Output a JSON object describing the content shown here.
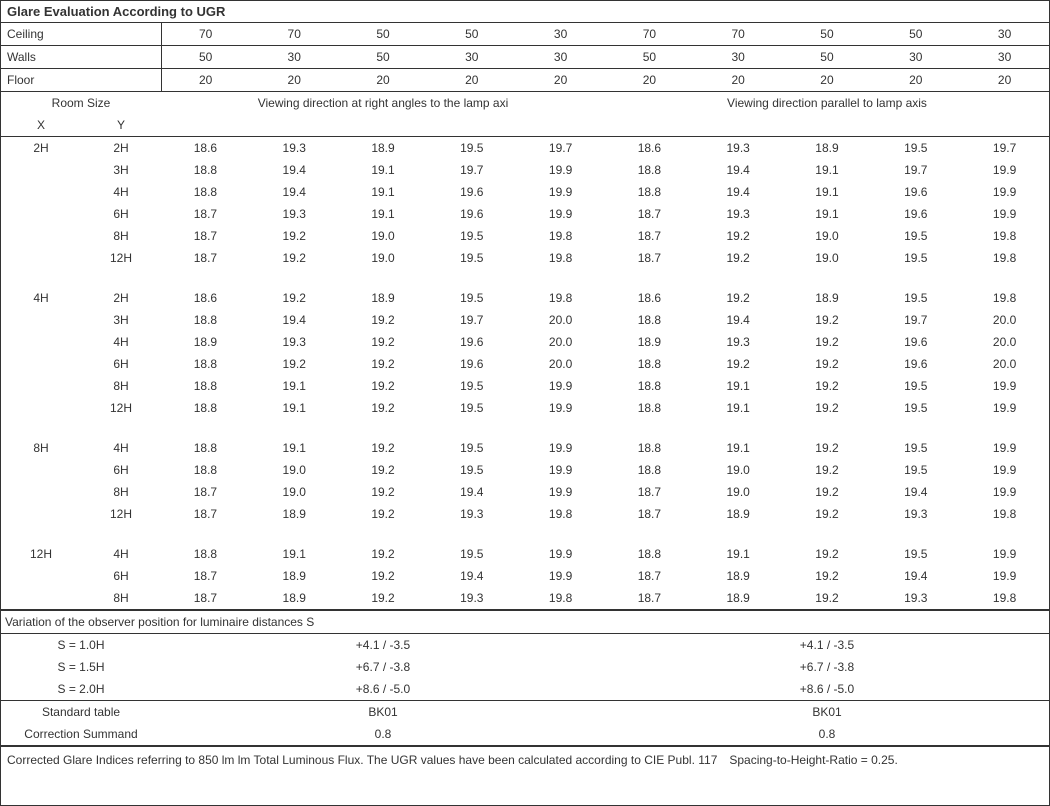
{
  "title": "Glare Evaluation According to UGR",
  "headers": {
    "ceiling": {
      "label": "Ceiling",
      "values": [
        "70",
        "70",
        "50",
        "50",
        "30",
        "70",
        "70",
        "50",
        "50",
        "30"
      ]
    },
    "walls": {
      "label": "Walls",
      "values": [
        "50",
        "30",
        "50",
        "30",
        "30",
        "50",
        "30",
        "50",
        "30",
        "30"
      ]
    },
    "floor": {
      "label": "Floor",
      "values": [
        "20",
        "20",
        "20",
        "20",
        "20",
        "20",
        "20",
        "20",
        "20",
        "20"
      ]
    }
  },
  "section": {
    "room_size": "Room Size",
    "x": "X",
    "y": "Y",
    "left": "Viewing direction at right angles to the lamp axi",
    "right": "Viewing direction parallel to lamp axis"
  },
  "groups": [
    {
      "x": "2H",
      "rows": [
        {
          "y": "2H",
          "l": [
            "18.6",
            "19.3",
            "18.9",
            "19.5",
            "19.7"
          ],
          "r": [
            "18.6",
            "19.3",
            "18.9",
            "19.5",
            "19.7"
          ]
        },
        {
          "y": "3H",
          "l": [
            "18.8",
            "19.4",
            "19.1",
            "19.7",
            "19.9"
          ],
          "r": [
            "18.8",
            "19.4",
            "19.1",
            "19.7",
            "19.9"
          ]
        },
        {
          "y": "4H",
          "l": [
            "18.8",
            "19.4",
            "19.1",
            "19.6",
            "19.9"
          ],
          "r": [
            "18.8",
            "19.4",
            "19.1",
            "19.6",
            "19.9"
          ]
        },
        {
          "y": "6H",
          "l": [
            "18.7",
            "19.3",
            "19.1",
            "19.6",
            "19.9"
          ],
          "r": [
            "18.7",
            "19.3",
            "19.1",
            "19.6",
            "19.9"
          ]
        },
        {
          "y": "8H",
          "l": [
            "18.7",
            "19.2",
            "19.0",
            "19.5",
            "19.8"
          ],
          "r": [
            "18.7",
            "19.2",
            "19.0",
            "19.5",
            "19.8"
          ]
        },
        {
          "y": "12H",
          "l": [
            "18.7",
            "19.2",
            "19.0",
            "19.5",
            "19.8"
          ],
          "r": [
            "18.7",
            "19.2",
            "19.0",
            "19.5",
            "19.8"
          ]
        }
      ]
    },
    {
      "x": "4H",
      "rows": [
        {
          "y": "2H",
          "l": [
            "18.6",
            "19.2",
            "18.9",
            "19.5",
            "19.8"
          ],
          "r": [
            "18.6",
            "19.2",
            "18.9",
            "19.5",
            "19.8"
          ]
        },
        {
          "y": "3H",
          "l": [
            "18.8",
            "19.4",
            "19.2",
            "19.7",
            "20.0"
          ],
          "r": [
            "18.8",
            "19.4",
            "19.2",
            "19.7",
            "20.0"
          ]
        },
        {
          "y": "4H",
          "l": [
            "18.9",
            "19.3",
            "19.2",
            "19.6",
            "20.0"
          ],
          "r": [
            "18.9",
            "19.3",
            "19.2",
            "19.6",
            "20.0"
          ]
        },
        {
          "y": "6H",
          "l": [
            "18.8",
            "19.2",
            "19.2",
            "19.6",
            "20.0"
          ],
          "r": [
            "18.8",
            "19.2",
            "19.2",
            "19.6",
            "20.0"
          ]
        },
        {
          "y": "8H",
          "l": [
            "18.8",
            "19.1",
            "19.2",
            "19.5",
            "19.9"
          ],
          "r": [
            "18.8",
            "19.1",
            "19.2",
            "19.5",
            "19.9"
          ]
        },
        {
          "y": "12H",
          "l": [
            "18.8",
            "19.1",
            "19.2",
            "19.5",
            "19.9"
          ],
          "r": [
            "18.8",
            "19.1",
            "19.2",
            "19.5",
            "19.9"
          ]
        }
      ]
    },
    {
      "x": "8H",
      "rows": [
        {
          "y": "4H",
          "l": [
            "18.8",
            "19.1",
            "19.2",
            "19.5",
            "19.9"
          ],
          "r": [
            "18.8",
            "19.1",
            "19.2",
            "19.5",
            "19.9"
          ]
        },
        {
          "y": "6H",
          "l": [
            "18.8",
            "19.0",
            "19.2",
            "19.5",
            "19.9"
          ],
          "r": [
            "18.8",
            "19.0",
            "19.2",
            "19.5",
            "19.9"
          ]
        },
        {
          "y": "8H",
          "l": [
            "18.7",
            "19.0",
            "19.2",
            "19.4",
            "19.9"
          ],
          "r": [
            "18.7",
            "19.0",
            "19.2",
            "19.4",
            "19.9"
          ]
        },
        {
          "y": "12H",
          "l": [
            "18.7",
            "18.9",
            "19.2",
            "19.3",
            "19.8"
          ],
          "r": [
            "18.7",
            "18.9",
            "19.2",
            "19.3",
            "19.8"
          ]
        }
      ]
    },
    {
      "x": "12H",
      "rows": [
        {
          "y": "4H",
          "l": [
            "18.8",
            "19.1",
            "19.2",
            "19.5",
            "19.9"
          ],
          "r": [
            "18.8",
            "19.1",
            "19.2",
            "19.5",
            "19.9"
          ]
        },
        {
          "y": "6H",
          "l": [
            "18.7",
            "18.9",
            "19.2",
            "19.4",
            "19.9"
          ],
          "r": [
            "18.7",
            "18.9",
            "19.2",
            "19.4",
            "19.9"
          ]
        },
        {
          "y": "8H",
          "l": [
            "18.7",
            "18.9",
            "19.2",
            "19.3",
            "19.8"
          ],
          "r": [
            "18.7",
            "18.9",
            "19.2",
            "19.3",
            "19.8"
          ]
        }
      ]
    }
  ],
  "variation": {
    "title": "Variation of the observer position for luminaire distances S",
    "rows": [
      {
        "label": "S = 1.0H",
        "left": "+4.1 / -3.5",
        "right": "+4.1 / -3.5"
      },
      {
        "label": "S = 1.5H",
        "left": "+6.7 / -3.8",
        "right": "+6.7 / -3.8"
      },
      {
        "label": "S = 2.0H",
        "left": "+8.6 / -5.0",
        "right": "+8.6 / -5.0"
      }
    ]
  },
  "standard": {
    "table_label": "Standard table",
    "table_left": "BK01",
    "table_right": "BK01",
    "corr_label": "Correction Summand",
    "corr_left": "0.8",
    "corr_right": "0.8"
  },
  "footnote": "Corrected Glare Indices referring to 850 lm lm Total Luminous Flux. The UGR values have been calculated according to CIE Publ. 117 Spacing-to-Height-Ratio = 0.25."
}
